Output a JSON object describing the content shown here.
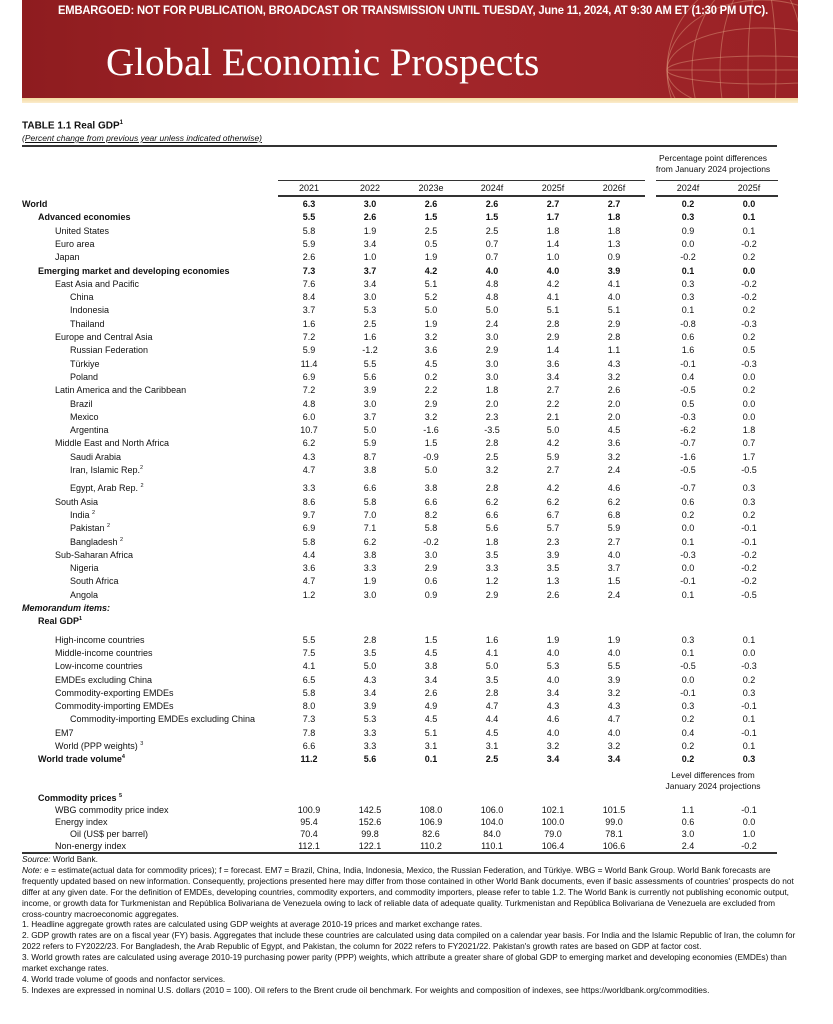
{
  "banner": {
    "embargo": "EMBARGOED: NOT FOR PUBLICATION, BROADCAST OR TRANSMISSION UNTIL TUESDAY, June 11, 2024, AT 9:30 AM ET (1:30 PM UTC).",
    "title": "Global Economic Prospects",
    "colors": {
      "banner": "#9a2226",
      "strip": "#f3d9a0"
    }
  },
  "table": {
    "title": "TABLE 1.1 Real GDP",
    "title_sup": "1",
    "subtitle": "(Percent change from previous year unless indicated otherwise)",
    "diff_header": [
      "Percentage point differences",
      "from January 2024 projections"
    ],
    "columns": [
      "2021",
      "2022",
      "2023e",
      "2024f",
      "2025f",
      "2026f",
      "2024f",
      "2025f"
    ],
    "rows": [
      {
        "label": "World",
        "level": 0,
        "bold": true,
        "values": [
          "6.3",
          "3.0",
          "2.6",
          "2.6",
          "2.7",
          "2.7",
          "0.2",
          "0.0"
        ]
      },
      {
        "label": "Advanced economies",
        "level": 1,
        "bold": true,
        "values": [
          "5.5",
          "2.6",
          "1.5",
          "1.5",
          "1.7",
          "1.8",
          "0.3",
          "0.1"
        ]
      },
      {
        "label": "United States",
        "level": 2,
        "values": [
          "5.8",
          "1.9",
          "2.5",
          "2.5",
          "1.8",
          "1.8",
          "0.9",
          "0.1"
        ]
      },
      {
        "label": "Euro area",
        "level": 2,
        "values": [
          "5.9",
          "3.4",
          "0.5",
          "0.7",
          "1.4",
          "1.3",
          "0.0",
          "-0.2"
        ]
      },
      {
        "label": "Japan",
        "level": 2,
        "values": [
          "2.6",
          "1.0",
          "1.9",
          "0.7",
          "1.0",
          "0.9",
          "-0.2",
          "0.2"
        ]
      },
      {
        "label": "Emerging market and developing economies",
        "level": 1,
        "bold": true,
        "values": [
          "7.3",
          "3.7",
          "4.2",
          "4.0",
          "4.0",
          "3.9",
          "0.1",
          "0.0"
        ]
      },
      {
        "label": "East Asia and Pacific",
        "level": 2,
        "values": [
          "7.6",
          "3.4",
          "5.1",
          "4.8",
          "4.2",
          "4.1",
          "0.3",
          "-0.2"
        ]
      },
      {
        "label": "China",
        "level": 3,
        "values": [
          "8.4",
          "3.0",
          "5.2",
          "4.8",
          "4.1",
          "4.0",
          "0.3",
          "-0.2"
        ]
      },
      {
        "label": "Indonesia",
        "level": 3,
        "values": [
          "3.7",
          "5.3",
          "5.0",
          "5.0",
          "5.1",
          "5.1",
          "0.1",
          "0.2"
        ]
      },
      {
        "label": "Thailand",
        "level": 3,
        "values": [
          "1.6",
          "2.5",
          "1.9",
          "2.4",
          "2.8",
          "2.9",
          "-0.8",
          "-0.3"
        ]
      },
      {
        "label": "Europe and Central Asia",
        "level": 2,
        "values": [
          "7.2",
          "1.6",
          "3.2",
          "3.0",
          "2.9",
          "2.8",
          "0.6",
          "0.2"
        ]
      },
      {
        "label": "Russian Federation",
        "level": 3,
        "values": [
          "5.9",
          "-1.2",
          "3.6",
          "2.9",
          "1.4",
          "1.1",
          "1.6",
          "0.5"
        ]
      },
      {
        "label": "Türkiye",
        "level": 3,
        "values": [
          "11.4",
          "5.5",
          "4.5",
          "3.0",
          "3.6",
          "4.3",
          "-0.1",
          "-0.3"
        ]
      },
      {
        "label": "Poland",
        "level": 3,
        "values": [
          "6.9",
          "5.6",
          "0.2",
          "3.0",
          "3.4",
          "3.2",
          "0.4",
          "0.0"
        ]
      },
      {
        "label": "Latin America and the Caribbean",
        "level": 2,
        "values": [
          "7.2",
          "3.9",
          "2.2",
          "1.8",
          "2.7",
          "2.6",
          "-0.5",
          "0.2"
        ]
      },
      {
        "label": "Brazil",
        "level": 3,
        "values": [
          "4.8",
          "3.0",
          "2.9",
          "2.0",
          "2.2",
          "2.0",
          "0.5",
          "0.0"
        ]
      },
      {
        "label": "Mexico",
        "level": 3,
        "values": [
          "6.0",
          "3.7",
          "3.2",
          "2.3",
          "2.1",
          "2.0",
          "-0.3",
          "0.0"
        ]
      },
      {
        "label": "Argentina",
        "level": 3,
        "values": [
          "10.7",
          "5.0",
          "-1.6",
          "-3.5",
          "5.0",
          "4.5",
          "-6.2",
          "1.8"
        ]
      },
      {
        "label": "Middle East and North Africa",
        "level": 2,
        "values": [
          "6.2",
          "5.9",
          "1.5",
          "2.8",
          "4.2",
          "3.6",
          "-0.7",
          "0.7"
        ]
      },
      {
        "label": "Saudi Arabia",
        "level": 3,
        "values": [
          "4.3",
          "8.7",
          "-0.9",
          "2.5",
          "5.9",
          "3.2",
          "-1.6",
          "1.7"
        ]
      },
      {
        "label": "Iran, Islamic Rep.",
        "sup": "2",
        "level": 3,
        "values": [
          "4.7",
          "3.8",
          "5.0",
          "3.2",
          "2.7",
          "2.4",
          "-0.5",
          "-0.5"
        ]
      },
      {
        "label": "Egypt, Arab Rep. ",
        "sup": "2",
        "level": 3,
        "gap": true,
        "values": [
          "3.3",
          "6.6",
          "3.8",
          "2.8",
          "4.2",
          "4.6",
          "-0.7",
          "0.3"
        ]
      },
      {
        "label": "South Asia",
        "level": 2,
        "values": [
          "8.6",
          "5.8",
          "6.6",
          "6.2",
          "6.2",
          "6.2",
          "0.6",
          "0.3"
        ]
      },
      {
        "label": "India ",
        "sup": "2",
        "level": 3,
        "values": [
          "9.7",
          "7.0",
          "8.2",
          "6.6",
          "6.7",
          "6.8",
          "0.2",
          "0.2"
        ]
      },
      {
        "label": "Pakistan ",
        "sup": "2",
        "level": 3,
        "values": [
          "6.9",
          "7.1",
          "5.8",
          "5.6",
          "5.7",
          "5.9",
          "0.0",
          "-0.1"
        ]
      },
      {
        "label": "Bangladesh ",
        "sup": "2",
        "level": 3,
        "values": [
          "5.8",
          "6.2",
          "-0.2",
          "1.8",
          "2.3",
          "2.7",
          "0.1",
          "-0.1"
        ]
      },
      {
        "label": "Sub-Saharan Africa",
        "level": 2,
        "values": [
          "4.4",
          "3.8",
          "3.0",
          "3.5",
          "3.9",
          "4.0",
          "-0.3",
          "-0.2"
        ]
      },
      {
        "label": "Nigeria",
        "level": 3,
        "values": [
          "3.6",
          "3.3",
          "2.9",
          "3.3",
          "3.5",
          "3.7",
          "0.0",
          "-0.2"
        ]
      },
      {
        "label": "South Africa",
        "level": 3,
        "values": [
          "4.7",
          "1.9",
          "0.6",
          "1.2",
          "1.3",
          "1.5",
          "-0.1",
          "-0.2"
        ]
      },
      {
        "label": "Angola",
        "level": 3,
        "values": [
          "1.2",
          "3.0",
          "0.9",
          "2.9",
          "2.6",
          "2.4",
          "0.1",
          "-0.5"
        ]
      },
      {
        "label": "Memorandum items:",
        "level": 0,
        "bold": true,
        "italic": true,
        "values": []
      },
      {
        "label": "Real GDP",
        "sup": "1",
        "level": 1,
        "bold": true,
        "values": []
      },
      {
        "label": "High-income countries",
        "level": 2,
        "gap": true,
        "values": [
          "5.5",
          "2.8",
          "1.5",
          "1.6",
          "1.9",
          "1.9",
          "0.3",
          "0.1"
        ]
      },
      {
        "label": "Middle-income countries",
        "level": 2,
        "values": [
          "7.5",
          "3.5",
          "4.5",
          "4.1",
          "4.0",
          "4.0",
          "0.1",
          "0.0"
        ]
      },
      {
        "label": "Low-income countries",
        "level": 2,
        "values": [
          "4.1",
          "5.0",
          "3.8",
          "5.0",
          "5.3",
          "5.5",
          "-0.5",
          "-0.3"
        ]
      },
      {
        "label": "EMDEs excluding China",
        "level": 2,
        "values": [
          "6.5",
          "4.3",
          "3.4",
          "3.5",
          "4.0",
          "3.9",
          "0.0",
          "0.2"
        ]
      },
      {
        "label": "Commodity-exporting EMDEs",
        "level": 2,
        "values": [
          "5.8",
          "3.4",
          "2.6",
          "2.8",
          "3.4",
          "3.2",
          "-0.1",
          "0.3"
        ]
      },
      {
        "label": "Commodity-importing EMDEs",
        "level": 2,
        "values": [
          "8.0",
          "3.9",
          "4.9",
          "4.7",
          "4.3",
          "4.3",
          "0.3",
          "-0.1"
        ]
      },
      {
        "label": "Commodity-importing EMDEs excluding China",
        "level": 3,
        "values": [
          "7.3",
          "5.3",
          "4.5",
          "4.4",
          "4.6",
          "4.7",
          "0.2",
          "0.1"
        ]
      },
      {
        "label": "EM7",
        "level": 2,
        "values": [
          "7.8",
          "3.3",
          "5.1",
          "4.5",
          "4.0",
          "4.0",
          "0.4",
          "-0.1"
        ]
      },
      {
        "label": "World (PPP weights) ",
        "sup": "3",
        "level": 2,
        "values": [
          "6.6",
          "3.3",
          "3.1",
          "3.1",
          "3.2",
          "3.2",
          "0.2",
          "0.1"
        ]
      },
      {
        "label": "World trade volume",
        "sup": "4",
        "level": 1,
        "bold": true,
        "values": [
          "11.2",
          "5.6",
          "0.1",
          "2.5",
          "3.4",
          "3.4",
          "0.2",
          "0.3"
        ]
      }
    ],
    "level_header": [
      "Level differences from",
      "January 2024 projections"
    ],
    "commodity_rows": [
      {
        "label": "Commodity prices ",
        "sup": "5",
        "level": 1,
        "bold": true,
        "values": []
      },
      {
        "label": "WBG commodity price index",
        "level": 2,
        "values": [
          "100.9",
          "142.5",
          "108.0",
          "106.0",
          "102.1",
          "101.5",
          "1.1",
          "-0.1"
        ]
      },
      {
        "label": "Energy index",
        "level": 2,
        "values": [
          "95.4",
          "152.6",
          "106.9",
          "104.0",
          "100.0",
          "99.0",
          "0.6",
          "0.0"
        ]
      },
      {
        "label": "Oil (US$ per barrel)",
        "level": 3,
        "values": [
          "70.4",
          "99.8",
          "82.6",
          "84.0",
          "79.0",
          "78.1",
          "3.0",
          "1.0"
        ]
      },
      {
        "label": "Non-energy index",
        "level": 2,
        "values": [
          "112.1",
          "122.1",
          "110.2",
          "110.1",
          "106.4",
          "106.6",
          "2.4",
          "-0.2"
        ]
      }
    ]
  },
  "notes": {
    "source_label": "Source:",
    "source": " World Bank.",
    "note_label": "Note:",
    "note": " e = estimate(actual data for commodity prices); f = forecast. EM7 = Brazil, China, India, Indonesia, Mexico, the Russian Federation, and Türkiye. WBG = World Bank Group. World Bank forecasts are frequently updated based on new information. Consequently, projections presented here may differ from those contained in other World Bank documents, even if basic assessments of countries' prospects do not differ at any given date. For the definition of EMDEs, developing countries, commodity exporters, and commodity importers, please refer to table 1.2. The World Bank is currently not publishing economic output, income, or growth data for Turkmenistan and República Bolivariana de Venezuela owing to lack of reliable data of adequate quality. Turkmenistan and República Bolivariana de Venezuela are excluded from cross-country macroeconomic aggregates.",
    "footnotes": [
      "1. Headline aggregate growth rates are calculated using GDP weights at average 2010-19 prices and market exchange rates.",
      "2. GDP growth rates are on a fiscal year (FY) basis. Aggregates that include these countries are calculated using data compiled on a calendar year basis. For India and the Islamic Republic of Iran, the column for 2022 refers to FY2022/23. For Bangladesh, the Arab Republic of Egypt, and Pakistan, the column for 2022 refers to FY2021/22. Pakistan's growth rates are based on GDP at factor cost.",
      "3. World growth rates are calculated using average 2010-19 purchasing power parity (PPP) weights, which attribute a greater share of global GDP to emerging market and developing economies (EMDEs) than market exchange rates.",
      "4. World trade volume of goods and nonfactor services.",
      "5. Indexes are expressed in nominal U.S. dollars (2010 = 100). Oil refers to the Brent crude oil benchmark. For weights and composition of indexes, see https://worldbank.org/commodities."
    ]
  }
}
